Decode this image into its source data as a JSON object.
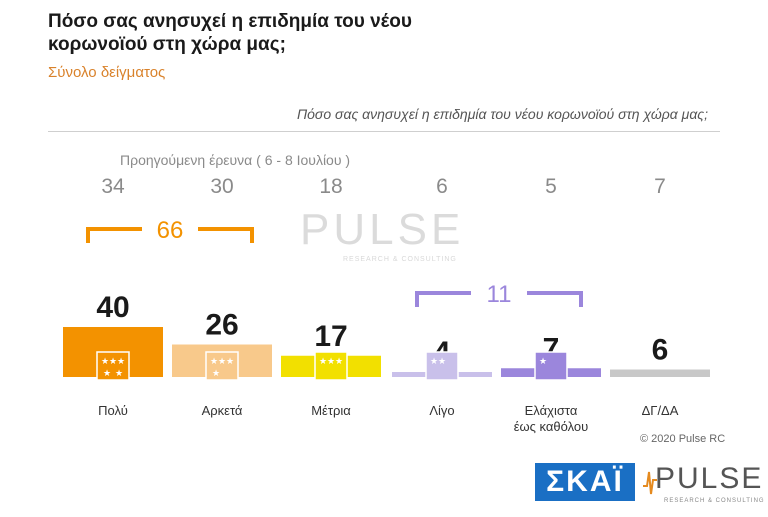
{
  "title": "Πόσο σας ανησυχεί η επιδημία του νέου κορωνοϊού στη χώρα μας;",
  "subtitle": "Σύνολο δείγματος",
  "question": "Πόσο σας ανησυχεί η επιδημία του νέου κορωνοϊού στη χώρα μας;",
  "previous_label": "Προηγούμενη έρευνα  ( 6 - 8 Ιουλίου )",
  "watermark": "PULSE",
  "watermark_sub": "RESEARCH & CONSULTING",
  "copyright": "© 2020 Pulse RC",
  "logos": {
    "skai": "ΣΚΑΪ",
    "pulse": "PULSE",
    "pulse_sub": "RESEARCH & CONSULTING"
  },
  "colors": [
    "#f39200",
    "#f8c98b",
    "#f2e000",
    "#c9c0ea",
    "#9b86dc",
    "#c8c8c8"
  ],
  "chart_data": {
    "type": "bar",
    "categories": [
      "Πολύ",
      "Αρκετά",
      "Μέτρια",
      "Λίγο",
      "Ελάχιστα έως καθόλου",
      "ΔΓ/ΔΑ"
    ],
    "category_lines": [
      [
        "Πολύ"
      ],
      [
        "Αρκετά"
      ],
      [
        "Μέτρια"
      ],
      [
        "Λίγο"
      ],
      [
        "Ελάχιστα",
        "έως καθόλου"
      ],
      [
        "ΔΓ/ΔΑ"
      ]
    ],
    "values": [
      40,
      26,
      17,
      4,
      7,
      6
    ],
    "previous_values": [
      34,
      30,
      18,
      6,
      5,
      7
    ],
    "groups": [
      {
        "label": "66",
        "from": 0,
        "to": 1,
        "color": "#f39200"
      },
      {
        "label": "11",
        "from": 3,
        "to": 4,
        "color": "#9b86dc"
      }
    ]
  }
}
